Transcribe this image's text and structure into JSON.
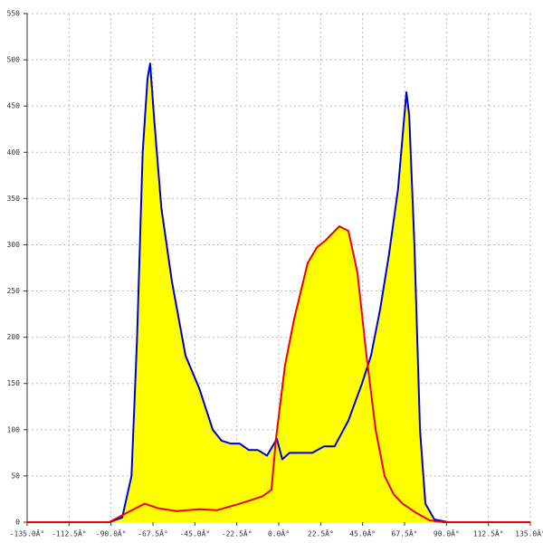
{
  "chart_data": {
    "type": "area",
    "xlim": [
      -135,
      135
    ],
    "ylim": [
      0,
      550
    ],
    "xticks": [
      {
        "value": -135,
        "label": "-135.0Â°"
      },
      {
        "value": -112.5,
        "label": "-112.5Â°"
      },
      {
        "value": -90,
        "label": "-90.0Â°"
      },
      {
        "value": -67.5,
        "label": "-67.5Â°"
      },
      {
        "value": -45,
        "label": "-45.0Â°"
      },
      {
        "value": -22.5,
        "label": "-22.5Â°"
      },
      {
        "value": 0,
        "label": "0.0Â°"
      },
      {
        "value": 22.5,
        "label": "22.5Â°"
      },
      {
        "value": 45,
        "label": "45.0Â°"
      },
      {
        "value": 67.5,
        "label": "67.5Â°"
      },
      {
        "value": 90,
        "label": "90.0Â°"
      },
      {
        "value": 112.5,
        "label": "112.5Â°"
      },
      {
        "value": 135,
        "label": "135.0Â°"
      }
    ],
    "yticks": [
      0,
      50,
      100,
      150,
      200,
      250,
      300,
      350,
      400,
      450,
      500,
      550
    ],
    "grid": true,
    "fill_color": "#ffff00",
    "series": [
      {
        "color": "#0000cc",
        "x": [
          -91,
          -84,
          -79,
          -76,
          -73,
          -70.4,
          -69,
          -67,
          -63,
          -57.3,
          -50,
          -42.7,
          -35.4,
          -30.6,
          -25.7,
          -20.9,
          -16,
          -11.2,
          -6.3,
          -1,
          1.9,
          5.8,
          18,
          24.3,
          30,
          37.4,
          44.7,
          49.5,
          54.4,
          59.2,
          64,
          67,
          68.5,
          70,
          72.8,
          75.8,
          78.7,
          83.5,
          90.8
        ],
        "values": [
          0,
          5,
          50,
          200,
          400,
          480,
          496,
          440,
          340,
          260,
          180,
          145,
          100,
          88,
          85,
          85,
          78,
          78,
          72,
          90,
          68,
          75,
          75,
          82,
          82,
          110,
          150,
          180,
          230,
          290,
          360,
          430,
          465,
          440,
          300,
          100,
          20,
          3,
          0
        ]
      },
      {
        "color": "#ee0000",
        "x": [
          -135,
          -91,
          -81.6,
          -71.9,
          -64.6,
          -54.9,
          -42.7,
          -33,
          -20.9,
          -8.7,
          -3.9,
          -1.5,
          3.4,
          8.3,
          15.5,
          20.4,
          25.3,
          32.5,
          37.4,
          42.2,
          47.1,
          52,
          56.8,
          61.7,
          66.5,
          73.8,
          81,
          88.4,
          135
        ],
        "values": [
          0,
          0,
          10,
          20,
          15,
          12,
          14,
          13,
          20,
          28,
          35,
          90,
          170,
          220,
          280,
          297,
          305,
          320,
          315,
          270,
          180,
          100,
          50,
          30,
          20,
          10,
          2,
          0,
          0
        ]
      }
    ]
  }
}
